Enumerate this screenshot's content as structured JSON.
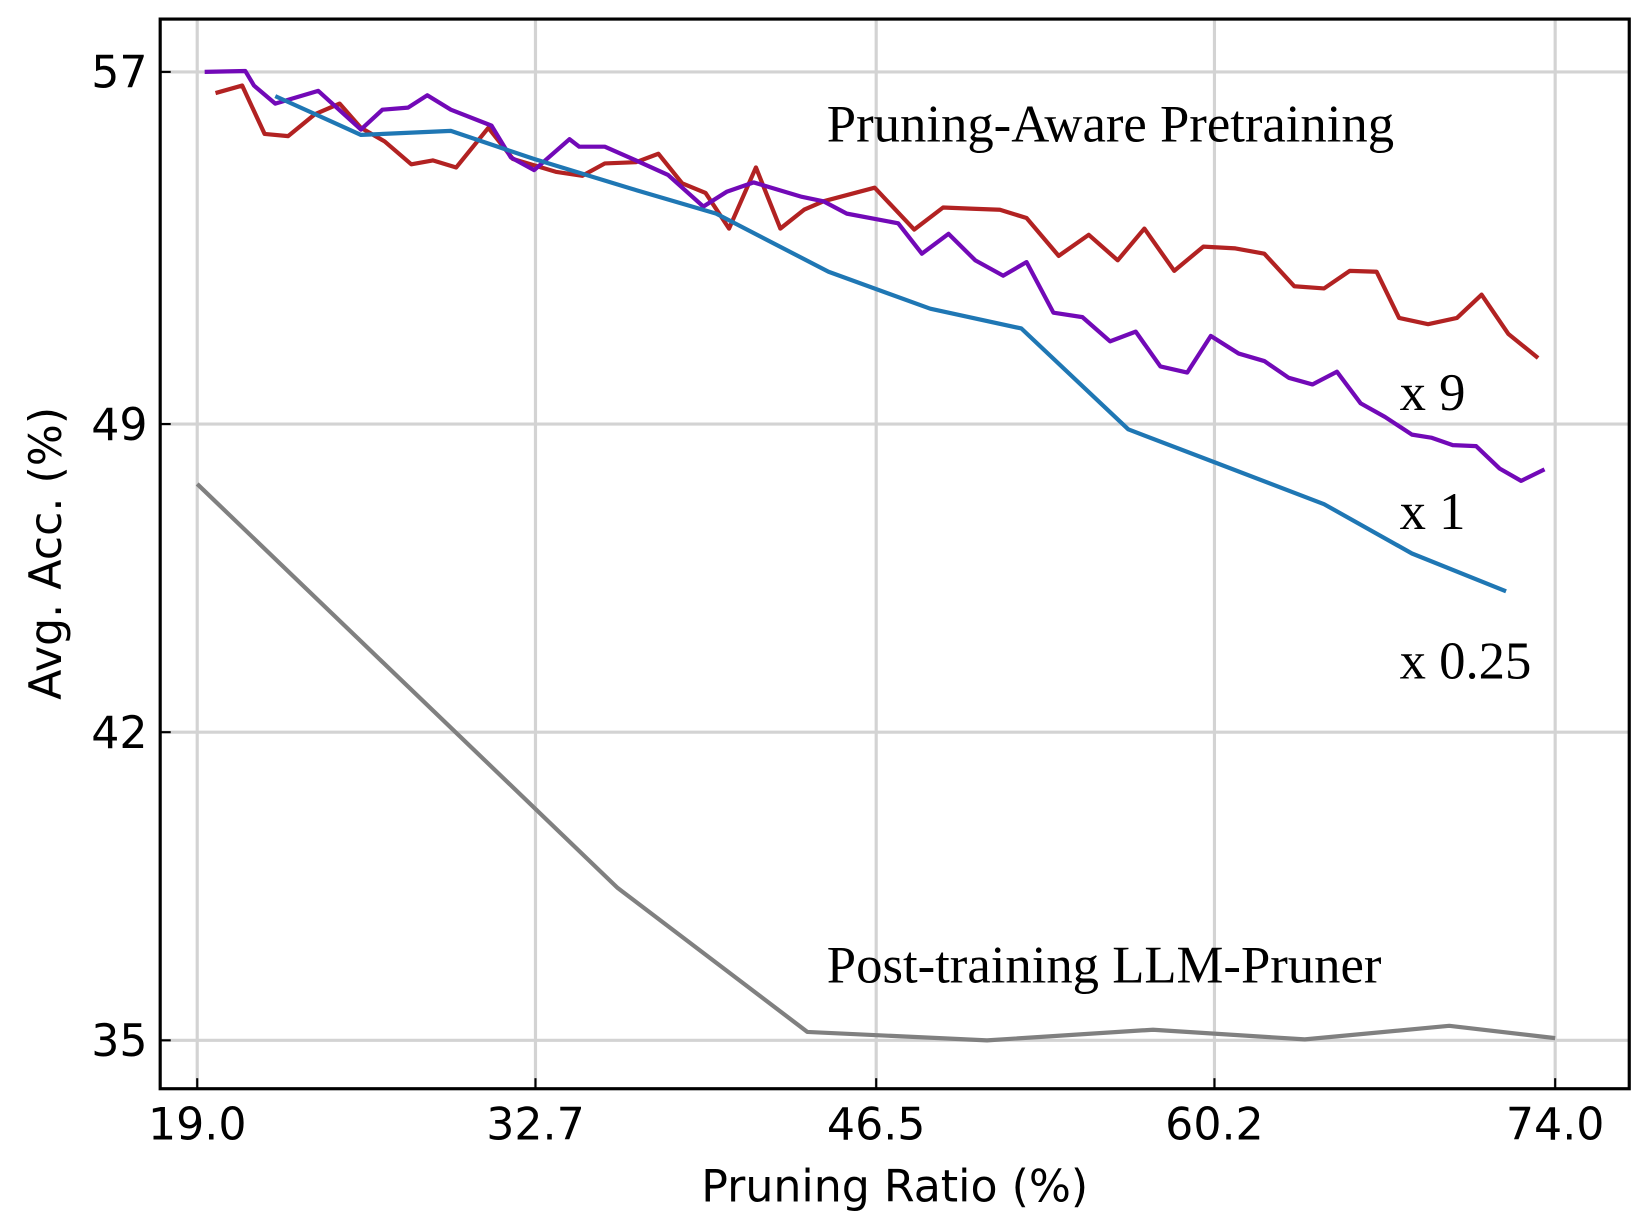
{
  "chart_data": {
    "type": "line",
    "title": "",
    "xlabel": "Pruning Ratio (%)",
    "ylabel": "Avg. Acc. (%)",
    "xlim": [
      17.5,
      77.0
    ],
    "ylim": [
      33.9,
      58.2
    ],
    "xticks": [
      "19.0",
      "32.7",
      "46.5",
      "60.2",
      "74.0"
    ],
    "xtick_values": [
      19.0,
      32.7,
      46.5,
      60.2,
      74.0
    ],
    "yticks": [
      "35",
      "42",
      "49",
      "57"
    ],
    "ytick_values": [
      35,
      42,
      49,
      57
    ],
    "grid": true,
    "annotations": [
      {
        "text": "Pruning-Aware Pretraining",
        "x": 44.5,
        "y": 55.8
      },
      {
        "text": "x 9",
        "x": 67.7,
        "y": 49.7
      },
      {
        "text": "x 1",
        "x": 67.7,
        "y": 47.0
      },
      {
        "text": "x 0.25",
        "x": 67.7,
        "y": 43.6
      },
      {
        "text": "Post-training LLM-Pruner",
        "x": 44.5,
        "y": 36.7
      }
    ],
    "series": [
      {
        "color": "#b22222",
        "x": [
          19.74,
          20.82,
          21.73,
          22.68,
          23.77,
          24.77,
          25.63,
          26.59,
          27.67,
          28.54,
          29.49,
          30.79,
          31.79,
          33.52,
          34.6,
          35.51,
          36.77,
          37.68,
          38.64,
          39.59,
          40.54,
          41.63,
          42.62,
          43.58,
          44.36,
          46.44,
          48.04,
          49.21,
          50.43,
          51.51,
          52.59,
          53.89,
          55.11,
          56.28,
          57.36,
          58.57,
          59.75,
          61.05,
          62.22,
          63.43,
          64.64,
          65.68,
          66.77,
          67.68,
          68.85,
          70.02,
          71.02,
          72.1,
          73.31
        ],
        "y": [
          56.52,
          56.69,
          55.59,
          55.54,
          56.04,
          56.28,
          55.73,
          55.42,
          54.9,
          54.99,
          54.83,
          55.73,
          55.02,
          54.73,
          54.64,
          54.92,
          54.95,
          55.14,
          54.47,
          54.25,
          53.44,
          54.83,
          53.44,
          53.87,
          54.06,
          54.37,
          53.42,
          53.92,
          53.89,
          53.87,
          53.68,
          52.82,
          53.3,
          52.72,
          53.44,
          52.48,
          53.03,
          52.99,
          52.87,
          52.13,
          52.08,
          52.48,
          52.46,
          51.41,
          51.27,
          51.41,
          51.94,
          51.05,
          50.5
        ]
      },
      {
        "color": "#7209b7",
        "x": [
          19.3,
          20.95,
          21.3,
          22.16,
          23.9,
          25.63,
          26.5,
          27.54,
          28.32,
          29.27,
          30.92,
          31.7,
          32.65,
          34.08,
          34.47,
          35.51,
          36.77,
          38.07,
          39.5,
          40.46,
          41.54,
          43.49,
          44.36,
          45.31,
          47.39,
          48.35,
          49.43,
          50.51,
          51.64,
          52.59,
          53.68,
          54.85,
          55.97,
          57.01,
          58.01,
          59.1,
          60.05,
          61.18,
          62.22,
          63.21,
          64.17,
          65.16,
          66.12,
          67.11,
          68.2,
          68.98,
          69.85,
          70.8,
          71.75,
          72.62,
          73.57
        ],
        "y": [
          57.0,
          57.02,
          56.69,
          56.28,
          56.57,
          55.69,
          56.14,
          56.19,
          56.47,
          56.14,
          55.78,
          55.06,
          54.77,
          55.47,
          55.3,
          55.3,
          54.99,
          54.66,
          53.94,
          54.28,
          54.49,
          54.16,
          54.06,
          53.78,
          53.56,
          52.87,
          53.32,
          52.72,
          52.37,
          52.68,
          51.53,
          51.43,
          50.88,
          51.1,
          50.31,
          50.17,
          51.0,
          50.6,
          50.43,
          50.05,
          49.9,
          50.19,
          49.47,
          49.16,
          48.76,
          48.69,
          48.52,
          48.5,
          47.99,
          47.71,
          47.97
        ]
      },
      {
        "color": "#1f77b4",
        "x": [
          22.16,
          25.63,
          29.27,
          32.65,
          36.56,
          40.02,
          44.57,
          48.69,
          52.38,
          56.71,
          60.4,
          64.64,
          68.2,
          72.01
        ],
        "y": [
          56.45,
          55.57,
          55.66,
          55.02,
          54.35,
          53.78,
          52.46,
          51.62,
          51.17,
          48.88,
          48.09,
          47.18,
          46.06,
          45.2
        ]
      },
      {
        "color": "#808080",
        "x": [
          19.0,
          36.03,
          43.71,
          50.99,
          57.71,
          63.86,
          69.71,
          74.0
        ],
        "y": [
          47.64,
          38.46,
          35.19,
          35.0,
          35.24,
          35.02,
          35.33,
          35.05
        ]
      }
    ]
  }
}
